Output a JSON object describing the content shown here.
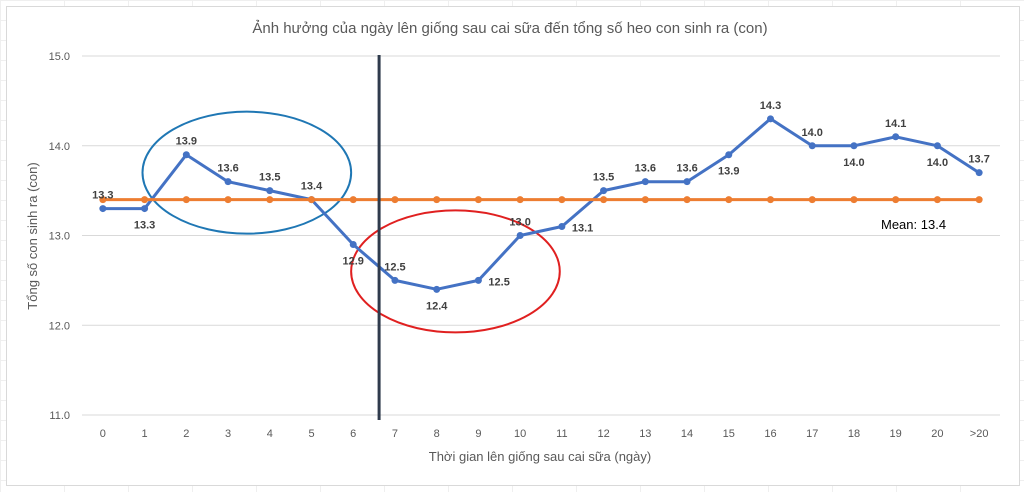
{
  "chart_data": {
    "type": "line",
    "title": "Ảnh hưởng của ngày lên giống sau cai sữa đến tổng số heo con sinh ra (con)",
    "xlabel": "Thời gian lên giống sau cai sữa (ngày)",
    "ylabel": "Tổng số con sinh ra (con)",
    "ylim": [
      11.0,
      15.0
    ],
    "yticks": [
      11.0,
      12.0,
      13.0,
      14.0,
      15.0
    ],
    "ytick_labels": [
      "11.0",
      "12.0",
      "13.0",
      "14.0",
      "15.0"
    ],
    "categories": [
      "0",
      "1",
      "2",
      "3",
      "4",
      "5",
      "6",
      "7",
      "8",
      "9",
      "10",
      "11",
      "12",
      "13",
      "14",
      "15",
      "16",
      "17",
      "18",
      "19",
      "20",
      ">20"
    ],
    "series": [
      {
        "name": "Tổng số heo con sinh ra",
        "color": "#4472c4",
        "values": [
          13.3,
          13.3,
          13.9,
          13.6,
          13.5,
          13.4,
          12.9,
          12.5,
          12.4,
          12.5,
          13.0,
          13.1,
          13.5,
          13.6,
          13.6,
          13.9,
          14.3,
          14.0,
          14.0,
          14.1,
          14.0,
          13.7
        ],
        "labels": [
          "13.3",
          "13.3",
          "13.9",
          "13.6",
          "13.5",
          "13.4",
          "12.9",
          "12.5",
          "12.4",
          "12.5",
          "13.0",
          "13.1",
          "13.5",
          "13.6",
          "13.6",
          "13.9",
          "14.3",
          "14.0",
          "14.0",
          "14.1",
          "14.0",
          "13.7"
        ],
        "label_side": [
          "above",
          "below",
          "above",
          "above",
          "above",
          "above",
          "below",
          "above",
          "below",
          "right",
          "above",
          "right",
          "above",
          "above",
          "above",
          "below",
          "above",
          "above",
          "below",
          "above",
          "below",
          "above"
        ]
      },
      {
        "name": "Mean",
        "color": "#ed7d31",
        "values": [
          13.4,
          13.4,
          13.4,
          13.4,
          13.4,
          13.4,
          13.4,
          13.4,
          13.4,
          13.4,
          13.4,
          13.4,
          13.4,
          13.4,
          13.4,
          13.4,
          13.4,
          13.4,
          13.4,
          13.4,
          13.4,
          13.4
        ]
      }
    ],
    "annotations": {
      "mean_text": "Mean: 13.4",
      "divider_between": [
        6,
        7
      ],
      "divider_color": "#2f3b4c",
      "ellipses": [
        {
          "name": "blue-ellipse",
          "color": "#1f77b4",
          "covers_categories": [
            1,
            6
          ],
          "center_value": 13.7
        },
        {
          "name": "red-ellipse",
          "color": "#e02020",
          "covers_categories": [
            6,
            11
          ],
          "center_value": 12.6
        }
      ]
    },
    "grid": true,
    "legend": "none"
  }
}
